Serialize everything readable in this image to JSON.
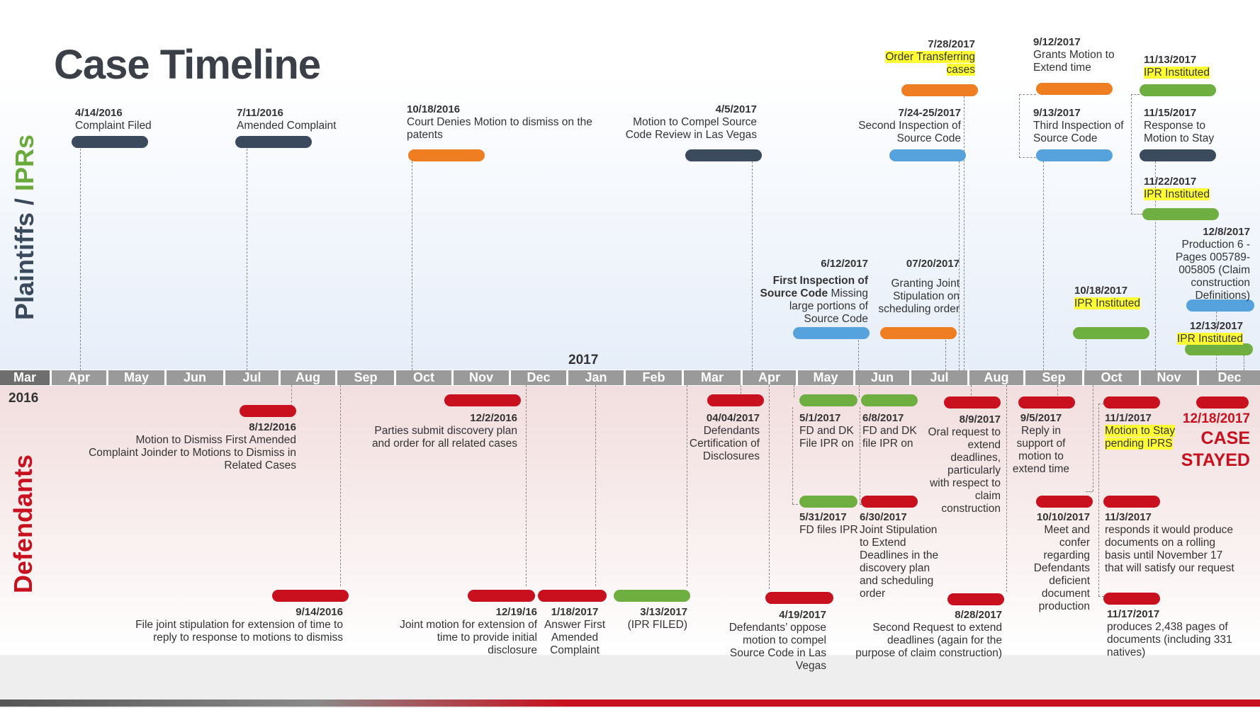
{
  "title": "Case Timeline",
  "side_labels": {
    "top_main": "Plaintiffs / ",
    "top_accent": "IPRs",
    "bottom": "Defendants"
  },
  "axis": {
    "months": [
      "Mar",
      "Apr",
      "May",
      "Jun",
      "Jul",
      "Aug",
      "Sep",
      "Oct",
      "Nov",
      "Dec",
      "Jan",
      "Feb",
      "Mar",
      "Apr",
      "May",
      "Jun",
      "Jul",
      "Aug",
      "Sep",
      "Oct",
      "Nov",
      "Dec"
    ],
    "year_2016": "2016",
    "year_2017": "2017"
  },
  "colors": {
    "navy": "#3b4a5c",
    "orange": "#ef7d22",
    "blue": "#56a2dc",
    "green": "#6fae40",
    "red": "#c8101e"
  },
  "top_events": [
    {
      "id": "e1",
      "date": "4/14/2016",
      "text": "Complaint Filed",
      "color": "navy"
    },
    {
      "id": "e2",
      "date": "7/11/2016",
      "text": "Amended Complaint",
      "color": "navy"
    },
    {
      "id": "e3",
      "date": "10/18/2016",
      "text": "Court Denies Motion to dismiss on the patents",
      "color": "orange"
    },
    {
      "id": "e4",
      "date": "4/5/2017",
      "text": "Motion to Compel Source Code Review in Las Vegas",
      "color": "navy"
    },
    {
      "id": "e5",
      "date": "6/12/2017",
      "text_bold": "First Inspection of Source Code",
      "text": " Missing large portions of Source Code",
      "color": "blue"
    },
    {
      "id": "e6",
      "date": "07/20/2017",
      "text": "Granting Joint Stipulation on scheduling order",
      "color": "orange"
    },
    {
      "id": "e7",
      "date": "7/24-25/2017",
      "text": "Second Inspection of Source Code",
      "color": "blue"
    },
    {
      "id": "e8",
      "date": "7/28/2017",
      "text": "Order Transferring cases",
      "color": "orange",
      "highlight": true
    },
    {
      "id": "e9",
      "date": "9/12/2017",
      "text": "Grants Motion to Extend time",
      "color": "orange"
    },
    {
      "id": "e10",
      "date": "9/13/2017",
      "text": "Third Inspection of Source Code",
      "color": "blue"
    },
    {
      "id": "e11",
      "date": "10/18/2017",
      "text": "IPR Instituted",
      "color": "green",
      "highlight": true
    },
    {
      "id": "e12",
      "date": "11/13/2017",
      "text": "IPR Instituted",
      "color": "green",
      "highlight": true
    },
    {
      "id": "e13",
      "date": "11/15/2017",
      "text": "Response to Motion to Stay",
      "color": "navy"
    },
    {
      "id": "e14",
      "date": "11/22/2017",
      "text": "IPR Instituted",
      "color": "green",
      "highlight": true
    },
    {
      "id": "e15",
      "date": "12/8/2017",
      "text": "Production 6 - Pages 005789-005805 (Claim construction Definitions)",
      "color": "blue"
    },
    {
      "id": "e16",
      "date": "12/13/2017",
      "text": "IPR Instituted",
      "color": "green",
      "highlight": true
    }
  ],
  "bottom_events": [
    {
      "id": "b1",
      "date": "8/12/2016",
      "text": "Motion to Dismiss First Amended Complaint Joinder to Motions to Dismiss in Related Cases",
      "color": "red"
    },
    {
      "id": "b2",
      "date": "9/14/2016",
      "text": "File joint stipulation for extension of time to reply to response to motions to dismiss",
      "color": "red"
    },
    {
      "id": "b3",
      "date": "12/2/2016",
      "text": "Parties submit discovery plan and order for all related cases",
      "color": "red"
    },
    {
      "id": "b4",
      "date": "12/19/16",
      "text": "Joint motion for extension of time to provide initial disclosure",
      "color": "red"
    },
    {
      "id": "b5",
      "date": "1/18/2017",
      "text": "Answer First Amended Complaint",
      "color": "red"
    },
    {
      "id": "b6",
      "date": "3/13/2017",
      "text": "(IPR FILED)",
      "color": "green"
    },
    {
      "id": "b7",
      "date": "04/04/2017",
      "text": "Defendants Certification of Disclosures",
      "color": "red"
    },
    {
      "id": "b8",
      "date": "4/19/2017",
      "text": "Defendants’ oppose motion to compel Source Code in Las Vegas",
      "color": "red"
    },
    {
      "id": "b9",
      "date": "5/1/2017",
      "text": "FD and DK File IPR on",
      "color": "green"
    },
    {
      "id": "b10",
      "date": "5/31/2017",
      "text": "FD files IPR",
      "color": "green"
    },
    {
      "id": "b11",
      "date": "6/8/2017",
      "text": "FD and DK file IPR on",
      "color": "green"
    },
    {
      "id": "b12",
      "date": "6/30/2017",
      "text": "Joint Stipulation to Extend Deadlines in the discovery plan and scheduling order",
      "color": "red"
    },
    {
      "id": "b13",
      "date": "8/9/2017",
      "text": "Oral request to extend deadlines, particularly with respect to claim construction",
      "color": "red"
    },
    {
      "id": "b14",
      "date": "8/28/2017",
      "text": "Second Request to extend deadlines (again for the purpose of claim construction)",
      "color": "red"
    },
    {
      "id": "b15",
      "date": "9/5/2017",
      "text": "Reply in support of motion to extend time",
      "color": "red"
    },
    {
      "id": "b16",
      "date": "10/10/2017",
      "text": "Meet and confer regarding Defendants deficient document production",
      "color": "red"
    },
    {
      "id": "b17",
      "date": "11/1/2017",
      "text": "Motion to Stay pending IPRS",
      "color": "red",
      "highlight": true
    },
    {
      "id": "b18",
      "date": "11/3/2017",
      "text": "responds it would produce documents on a rolling basis until November 17 that will satisfy our request",
      "color": "red"
    },
    {
      "id": "b19",
      "date": "11/17/2017",
      "text": "produces 2,438 pages of documents (including 331 natives)",
      "color": "red"
    },
    {
      "id": "b20",
      "date": "12/18/2017",
      "text": "CASE STAYED",
      "color": "red"
    }
  ]
}
